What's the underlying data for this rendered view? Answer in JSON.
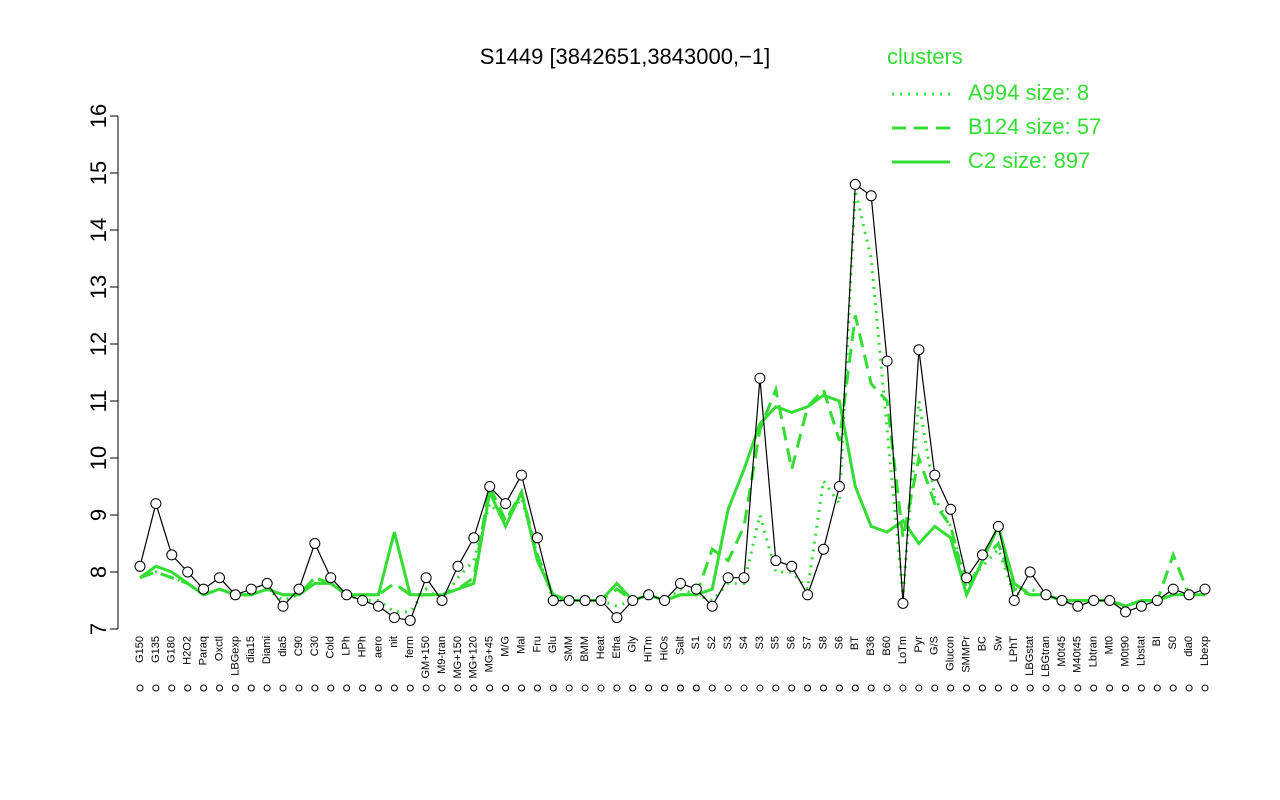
{
  "chart_data": {
    "type": "line",
    "title": "S1449 [3842651,3843000,−1]",
    "legend_title": "clusters",
    "legend": "top-right",
    "categories": [
      "G150",
      "G135",
      "G180",
      "H2O2",
      "Paraq",
      "Oxctl",
      "LBGexp",
      "dia15",
      "Diami",
      "dia5",
      "C90",
      "C30",
      "Cold",
      "LPh",
      "HPh",
      "aero",
      "nit",
      "ferm",
      "GM+150",
      "M9-tran",
      "MG+150",
      "MG+120",
      "MG+45",
      "M/G",
      "Mal",
      "Fru",
      "Glu",
      "SMM",
      "BMM",
      "Heat",
      "Etha",
      "Gly",
      "HiTm",
      "HiOs",
      "Salt",
      "S1",
      "S2",
      "S3",
      "S4",
      "S3",
      "S5",
      "S6",
      "S7",
      "S8",
      "S6",
      "BT",
      "B36",
      "B60",
      "LoTm",
      "Pyr",
      "G/S",
      "Glucon",
      "SMMPr",
      "BC",
      "Sw",
      "LPhT",
      "LBGstat",
      "LBGtran",
      "M0t45",
      "M40t45",
      "Lbtran",
      "Mt0",
      "M0t90",
      "Lbstat",
      "BI",
      "S0",
      "dia0",
      "Lbexp"
    ],
    "values": [
      8.1,
      9.2,
      8.3,
      8.0,
      7.7,
      7.9,
      7.6,
      7.7,
      7.8,
      7.4,
      7.7,
      8.5,
      7.9,
      7.6,
      7.5,
      7.4,
      7.2,
      7.15,
      7.9,
      7.5,
      8.1,
      8.6,
      9.5,
      9.2,
      9.7,
      8.6,
      7.5,
      7.5,
      7.5,
      7.5,
      7.2,
      7.5,
      7.6,
      7.5,
      7.8,
      7.7,
      7.4,
      7.9,
      7.9,
      11.4,
      8.2,
      8.1,
      7.6,
      8.4,
      9.5,
      14.8,
      14.6,
      11.7,
      7.45,
      11.9,
      9.7,
      9.1,
      7.9,
      8.3,
      8.8,
      7.5,
      8.0,
      7.6,
      7.5,
      7.4,
      7.5,
      7.5,
      7.3,
      7.4,
      7.5,
      7.7,
      7.6,
      7.7
    ],
    "color": "#000000",
    "series": [
      {
        "name": "A994 size: 8",
        "color": "#33dd33",
        "dash": "dotted",
        "values": [
          7.9,
          8.0,
          7.9,
          7.8,
          7.6,
          7.7,
          7.6,
          7.6,
          7.7,
          7.5,
          7.6,
          7.9,
          7.8,
          7.6,
          7.5,
          7.5,
          7.3,
          7.3,
          7.7,
          7.5,
          7.9,
          8.2,
          9.2,
          8.9,
          9.3,
          8.3,
          7.5,
          7.5,
          7.5,
          7.5,
          7.4,
          7.5,
          7.6,
          7.5,
          7.7,
          7.6,
          7.5,
          7.8,
          7.8,
          9.0,
          8.0,
          8.0,
          7.7,
          9.6,
          9.2,
          14.7,
          13.5,
          10.5,
          7.6,
          11.0,
          9.3,
          8.8,
          7.8,
          8.1,
          8.4,
          7.6,
          7.7,
          7.6,
          7.5,
          7.5,
          7.5,
          7.5,
          7.4,
          7.5,
          7.5,
          7.6,
          7.6,
          7.6
        ]
      },
      {
        "name": "B124 size: 57",
        "color": "#33dd33",
        "dash": "dashed",
        "values": [
          7.9,
          8.0,
          7.9,
          7.8,
          7.6,
          7.7,
          7.6,
          7.6,
          7.7,
          7.6,
          7.6,
          7.9,
          7.8,
          7.6,
          7.6,
          7.6,
          7.8,
          7.6,
          7.6,
          7.6,
          7.7,
          7.9,
          9.5,
          8.9,
          9.4,
          8.3,
          7.6,
          7.5,
          7.5,
          7.5,
          7.7,
          7.5,
          7.6,
          7.5,
          7.6,
          7.6,
          8.4,
          8.2,
          8.8,
          10.5,
          11.2,
          9.8,
          10.9,
          11.2,
          10.3,
          12.5,
          11.3,
          11.0,
          8.6,
          10.0,
          9.2,
          8.8,
          7.7,
          8.2,
          8.5,
          7.7,
          7.6,
          7.6,
          7.5,
          7.5,
          7.5,
          7.5,
          7.4,
          7.5,
          7.5,
          8.3,
          7.6,
          7.6
        ]
      },
      {
        "name": "C2 size: 897",
        "color": "#33dd33",
        "dash": "solid",
        "values": [
          7.9,
          8.1,
          8.0,
          7.8,
          7.6,
          7.7,
          7.6,
          7.6,
          7.7,
          7.6,
          7.6,
          7.8,
          7.8,
          7.6,
          7.6,
          7.6,
          8.7,
          7.6,
          7.6,
          7.6,
          7.7,
          7.8,
          9.4,
          8.8,
          9.4,
          8.2,
          7.6,
          7.5,
          7.5,
          7.5,
          7.8,
          7.5,
          7.6,
          7.5,
          7.6,
          7.6,
          7.7,
          9.1,
          9.8,
          10.6,
          10.9,
          10.8,
          10.9,
          11.1,
          11.0,
          9.5,
          8.8,
          8.7,
          8.9,
          8.5,
          8.8,
          8.6,
          7.6,
          8.2,
          8.8,
          7.8,
          7.6,
          7.6,
          7.5,
          7.5,
          7.5,
          7.5,
          7.4,
          7.5,
          7.5,
          7.6,
          7.6,
          7.6
        ]
      }
    ],
    "ylim": [
      7,
      16
    ],
    "yticks": [
      7,
      8,
      9,
      10,
      11,
      12,
      13,
      14,
      15,
      16
    ]
  }
}
